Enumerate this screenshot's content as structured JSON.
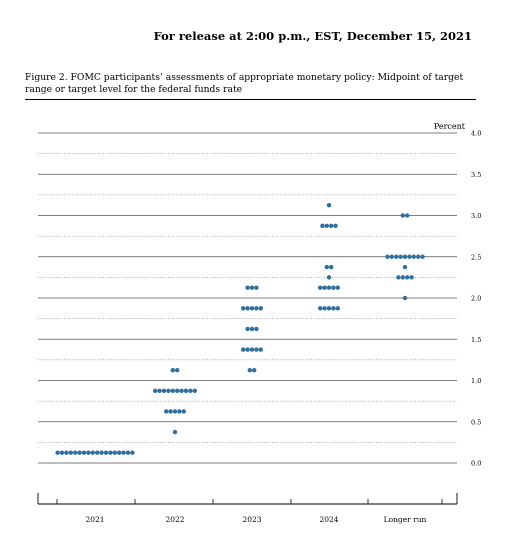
{
  "header": {
    "release_text": "For release at 2:00 p.m., EST, December 15, 2021"
  },
  "figure": {
    "caption": "Figure 2.  FOMC participants’ assessments of appropriate monetary policy:  Midpoint of target range or target level for the federal funds rate"
  },
  "colors": {
    "dot": "#2f6f9f",
    "grid": "#555555"
  },
  "chart_data": {
    "type": "scatter",
    "unit_label": "Percent",
    "categories": [
      "2021",
      "2022",
      "2023",
      "2024",
      "Longer run"
    ],
    "ylim": [
      0,
      4.0
    ],
    "y_tick_labels": [
      "0.0",
      "0.5",
      "1.0",
      "1.5",
      "2.0",
      "2.5",
      "3.0",
      "3.5",
      "4.0"
    ],
    "dot_counts": {
      "2021": [
        {
          "y": 0.125,
          "n": 18
        }
      ],
      "2022": [
        {
          "y": 0.375,
          "n": 1
        },
        {
          "y": 0.625,
          "n": 5
        },
        {
          "y": 0.875,
          "n": 10
        },
        {
          "y": 1.125,
          "n": 2
        }
      ],
      "2023": [
        {
          "y": 1.125,
          "n": 2
        },
        {
          "y": 1.375,
          "n": 5
        },
        {
          "y": 1.625,
          "n": 3
        },
        {
          "y": 1.875,
          "n": 5
        },
        {
          "y": 2.125,
          "n": 3
        }
      ],
      "2024": [
        {
          "y": 1.875,
          "n": 5
        },
        {
          "y": 2.125,
          "n": 5
        },
        {
          "y": 2.25,
          "n": 1
        },
        {
          "y": 2.375,
          "n": 2
        },
        {
          "y": 2.875,
          "n": 4
        },
        {
          "y": 3.125,
          "n": 1
        }
      ],
      "Longer run": [
        {
          "y": 2.0,
          "n": 1
        },
        {
          "y": 2.25,
          "n": 4
        },
        {
          "y": 2.375,
          "n": 1
        },
        {
          "y": 2.5,
          "n": 9
        },
        {
          "y": 3.0,
          "n": 2
        }
      ]
    },
    "grid": "dotted at every 0.25, solid at every 0.5"
  }
}
